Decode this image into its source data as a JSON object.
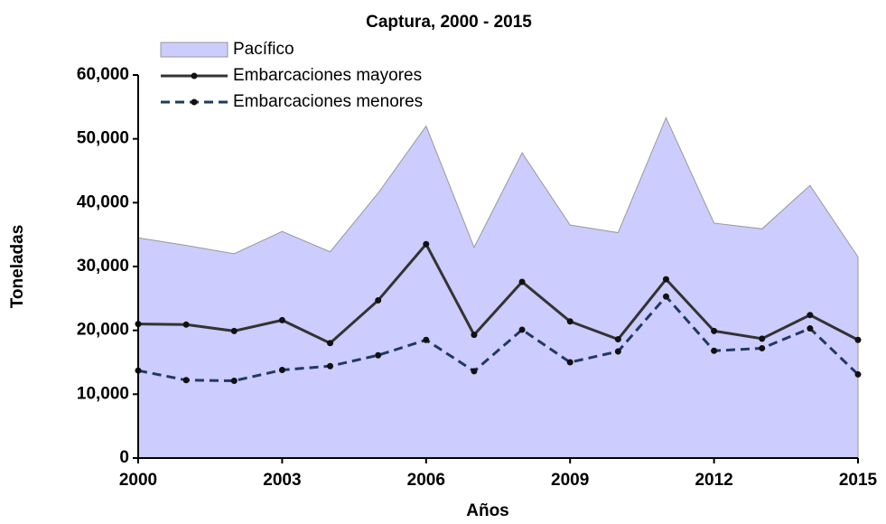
{
  "chart_data": {
    "type": "line",
    "title": "Captura, 2000 - 2015",
    "xlabel": "Años",
    "ylabel": "Toneladas",
    "x": [
      2000,
      2001,
      2002,
      2003,
      2004,
      2005,
      2006,
      2007,
      2008,
      2009,
      2010,
      2011,
      2012,
      2013,
      2014,
      2015
    ],
    "series": [
      {
        "name": "Pacífico",
        "type": "area",
        "color": "#ccccff",
        "values": [
          34500,
          33300,
          32000,
          35500,
          32300,
          41500,
          52000,
          33000,
          47800,
          36500,
          35300,
          53300,
          36800,
          35900,
          42700,
          31500
        ]
      },
      {
        "name": "Embarcaciones mayores",
        "type": "line",
        "color": "#333333",
        "dash": false,
        "values": [
          21000,
          20900,
          19900,
          21600,
          18000,
          24700,
          33500,
          19300,
          27600,
          21400,
          18600,
          28000,
          19900,
          18700,
          22400,
          18500
        ]
      },
      {
        "name": "Embarcaciones menores",
        "type": "line",
        "color": "#1f3a5f",
        "dash": true,
        "values": [
          13700,
          12200,
          12100,
          13800,
          14400,
          16100,
          18500,
          13600,
          20100,
          15000,
          16700,
          25300,
          16800,
          17200,
          20300,
          13100
        ]
      }
    ],
    "xlim": [
      2000,
      2015
    ],
    "xticks": [
      2000,
      2003,
      2006,
      2009,
      2012,
      2015
    ],
    "ylim": [
      0,
      60000
    ],
    "yticks": [
      0,
      {
        "value": 10000,
        "label": "10,000"
      },
      {
        "value": 20000,
        "label": "20,000"
      },
      {
        "value": 30000,
        "label": "30,000"
      },
      {
        "value": 40000,
        "label": "40,000"
      },
      {
        "value": 50000,
        "label": "50,000"
      },
      {
        "value": 60000,
        "label": "60,000"
      }
    ]
  }
}
